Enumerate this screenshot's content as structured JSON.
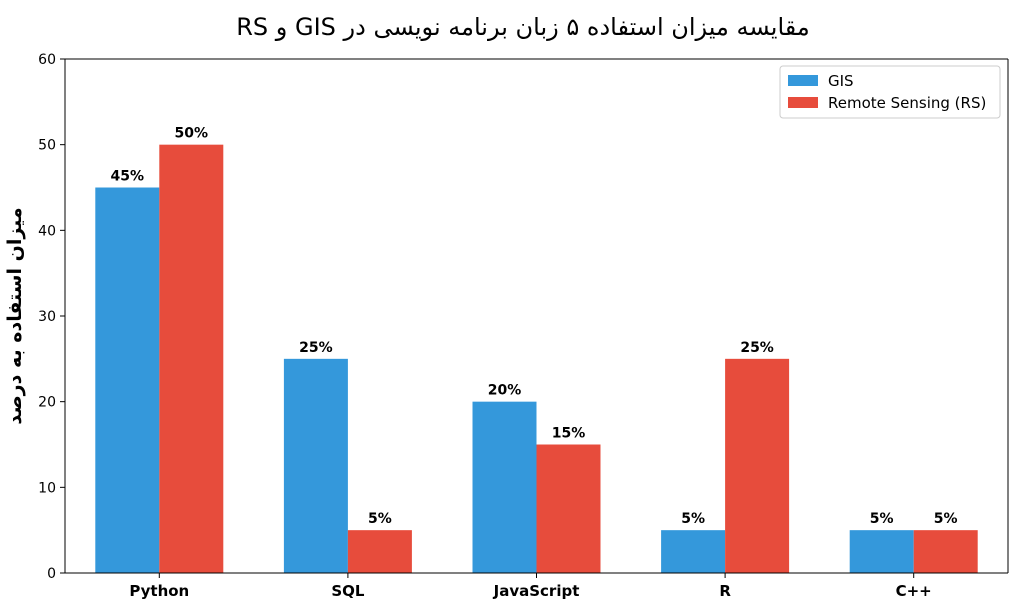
{
  "chart_data": {
    "type": "bar",
    "title": "مقایسه میزان استفاده ۵ زبان برنامه نویسی در GIS و RS",
    "xlabel": "",
    "ylabel": "میزان استفاده به درصد",
    "categories": [
      "Python",
      "SQL",
      "JavaScript",
      "R",
      "C++"
    ],
    "series": [
      {
        "name": "GIS",
        "values": [
          45,
          25,
          20,
          5,
          5
        ],
        "labels": [
          "45%",
          "25%",
          "20%",
          "5%",
          "5%"
        ],
        "color": "#3498db"
      },
      {
        "name": "Remote Sensing (RS)",
        "values": [
          50,
          5,
          15,
          25,
          5
        ],
        "labels": [
          "50%",
          "5%",
          "15%",
          "25%",
          "5%"
        ],
        "color": "#e74c3c"
      }
    ],
    "ylim": [
      0,
      60
    ],
    "yticks": [
      "0",
      "10",
      "20",
      "30",
      "40",
      "50",
      "60"
    ],
    "grid": false,
    "legend_position": "top-right"
  }
}
